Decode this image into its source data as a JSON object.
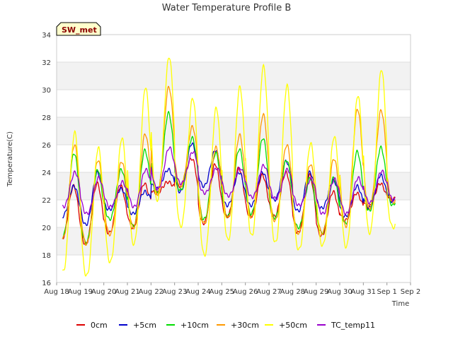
{
  "chart_data": {
    "type": "line",
    "title": "Water Temperature Profile B",
    "xlabel": "Time",
    "ylabel": "Temperature(C)",
    "site_label": "SW_met",
    "ylim": [
      16,
      34
    ],
    "y_ticks": [
      16,
      18,
      20,
      22,
      24,
      26,
      28,
      30,
      32,
      34
    ],
    "xlim": [
      "Aug 18",
      "Sep 2"
    ],
    "x_ticks": [
      "Aug 18",
      "Aug 19",
      "Aug 20",
      "Aug 21",
      "Aug 22",
      "Aug 23",
      "Aug 24",
      "Aug 25",
      "Aug 26",
      "Aug 27",
      "Aug 28",
      "Aug 29",
      "Aug 30",
      "Aug 31",
      "Sep 1",
      "Sep 2"
    ],
    "grid": "horizontal bands",
    "legend_position": "bottom",
    "days": [
      "Aug 18",
      "Aug 19",
      "Aug 20",
      "Aug 21",
      "Aug 22",
      "Aug 23",
      "Aug 24",
      "Aug 25",
      "Aug 26",
      "Aug 27",
      "Aug 28",
      "Aug 29",
      "Aug 30",
      "Aug 31",
      "Sep 1"
    ],
    "series": [
      {
        "name": "0cm",
        "color": "#dd0000",
        "daily_min": [
          19.2,
          18.8,
          19.6,
          20.0,
          22.5,
          23.0,
          20.3,
          20.8,
          20.8,
          20.8,
          19.6,
          19.4,
          20.5,
          21.5,
          22.0
        ],
        "daily_max": [
          23.0,
          23.2,
          23.0,
          23.2,
          23.3,
          25.0,
          24.6,
          24.3,
          23.8,
          24.0,
          23.8,
          22.6,
          22.5,
          23.2,
          23.6
        ]
      },
      {
        "name": "+5cm",
        "color": "#0000cc",
        "daily_min": [
          20.8,
          20.2,
          21.3,
          21.0,
          22.8,
          22.6,
          23.0,
          21.6,
          21.6,
          22.0,
          21.2,
          21.4,
          20.8,
          21.4,
          21.9
        ],
        "daily_max": [
          23.0,
          24.0,
          22.8,
          22.6,
          24.2,
          26.1,
          25.6,
          24.0,
          24.0,
          24.8,
          24.0,
          23.4,
          23.0,
          23.8,
          24.2
        ]
      },
      {
        "name": "+10cm",
        "color": "#00dd00",
        "daily_min": [
          19.3,
          18.9,
          20.6,
          20.1,
          22.5,
          22.7,
          20.6,
          20.8,
          21.0,
          20.7,
          20.0,
          19.6,
          20.3,
          21.2,
          21.6
        ],
        "daily_max": [
          25.4,
          24.2,
          24.2,
          25.6,
          28.3,
          26.5,
          25.4,
          25.7,
          26.5,
          24.9,
          23.6,
          23.6,
          25.5,
          25.8,
          25.8
        ]
      },
      {
        "name": "+30cm",
        "color": "#ff9900",
        "daily_min": [
          19.2,
          18.8,
          19.5,
          20.0,
          22.4,
          23.0,
          20.3,
          20.7,
          20.7,
          20.5,
          19.6,
          19.6,
          20.1,
          21.4,
          21.8
        ],
        "daily_max": [
          26.0,
          24.9,
          24.8,
          26.8,
          30.2,
          27.3,
          25.8,
          26.7,
          28.2,
          26.0,
          24.6,
          25.0,
          28.6,
          28.5,
          26.3
        ]
      },
      {
        "name": "+50cm",
        "color": "#ffff00",
        "daily_min": [
          16.8,
          16.5,
          17.5,
          18.8,
          22.0,
          20.1,
          18.0,
          19.1,
          19.4,
          18.9,
          18.4,
          18.7,
          18.6,
          19.6,
          20.0
        ],
        "daily_max": [
          26.9,
          25.8,
          26.5,
          30.2,
          32.4,
          29.4,
          28.7,
          30.2,
          31.7,
          30.3,
          26.1,
          26.6,
          29.6,
          31.5,
          24.5
        ]
      },
      {
        "name": "TC_temp11",
        "color": "#9900cc",
        "daily_min": [
          21.5,
          21.0,
          21.5,
          21.5,
          22.8,
          23.2,
          22.5,
          22.3,
          22.2,
          22.1,
          21.6,
          21.0,
          21.0,
          21.8,
          22.0
        ],
        "daily_max": [
          24.0,
          23.6,
          23.3,
          24.2,
          25.8,
          25.5,
          24.3,
          24.3,
          24.5,
          24.2,
          23.5,
          23.5,
          23.6,
          24.1,
          24.3
        ]
      }
    ]
  }
}
